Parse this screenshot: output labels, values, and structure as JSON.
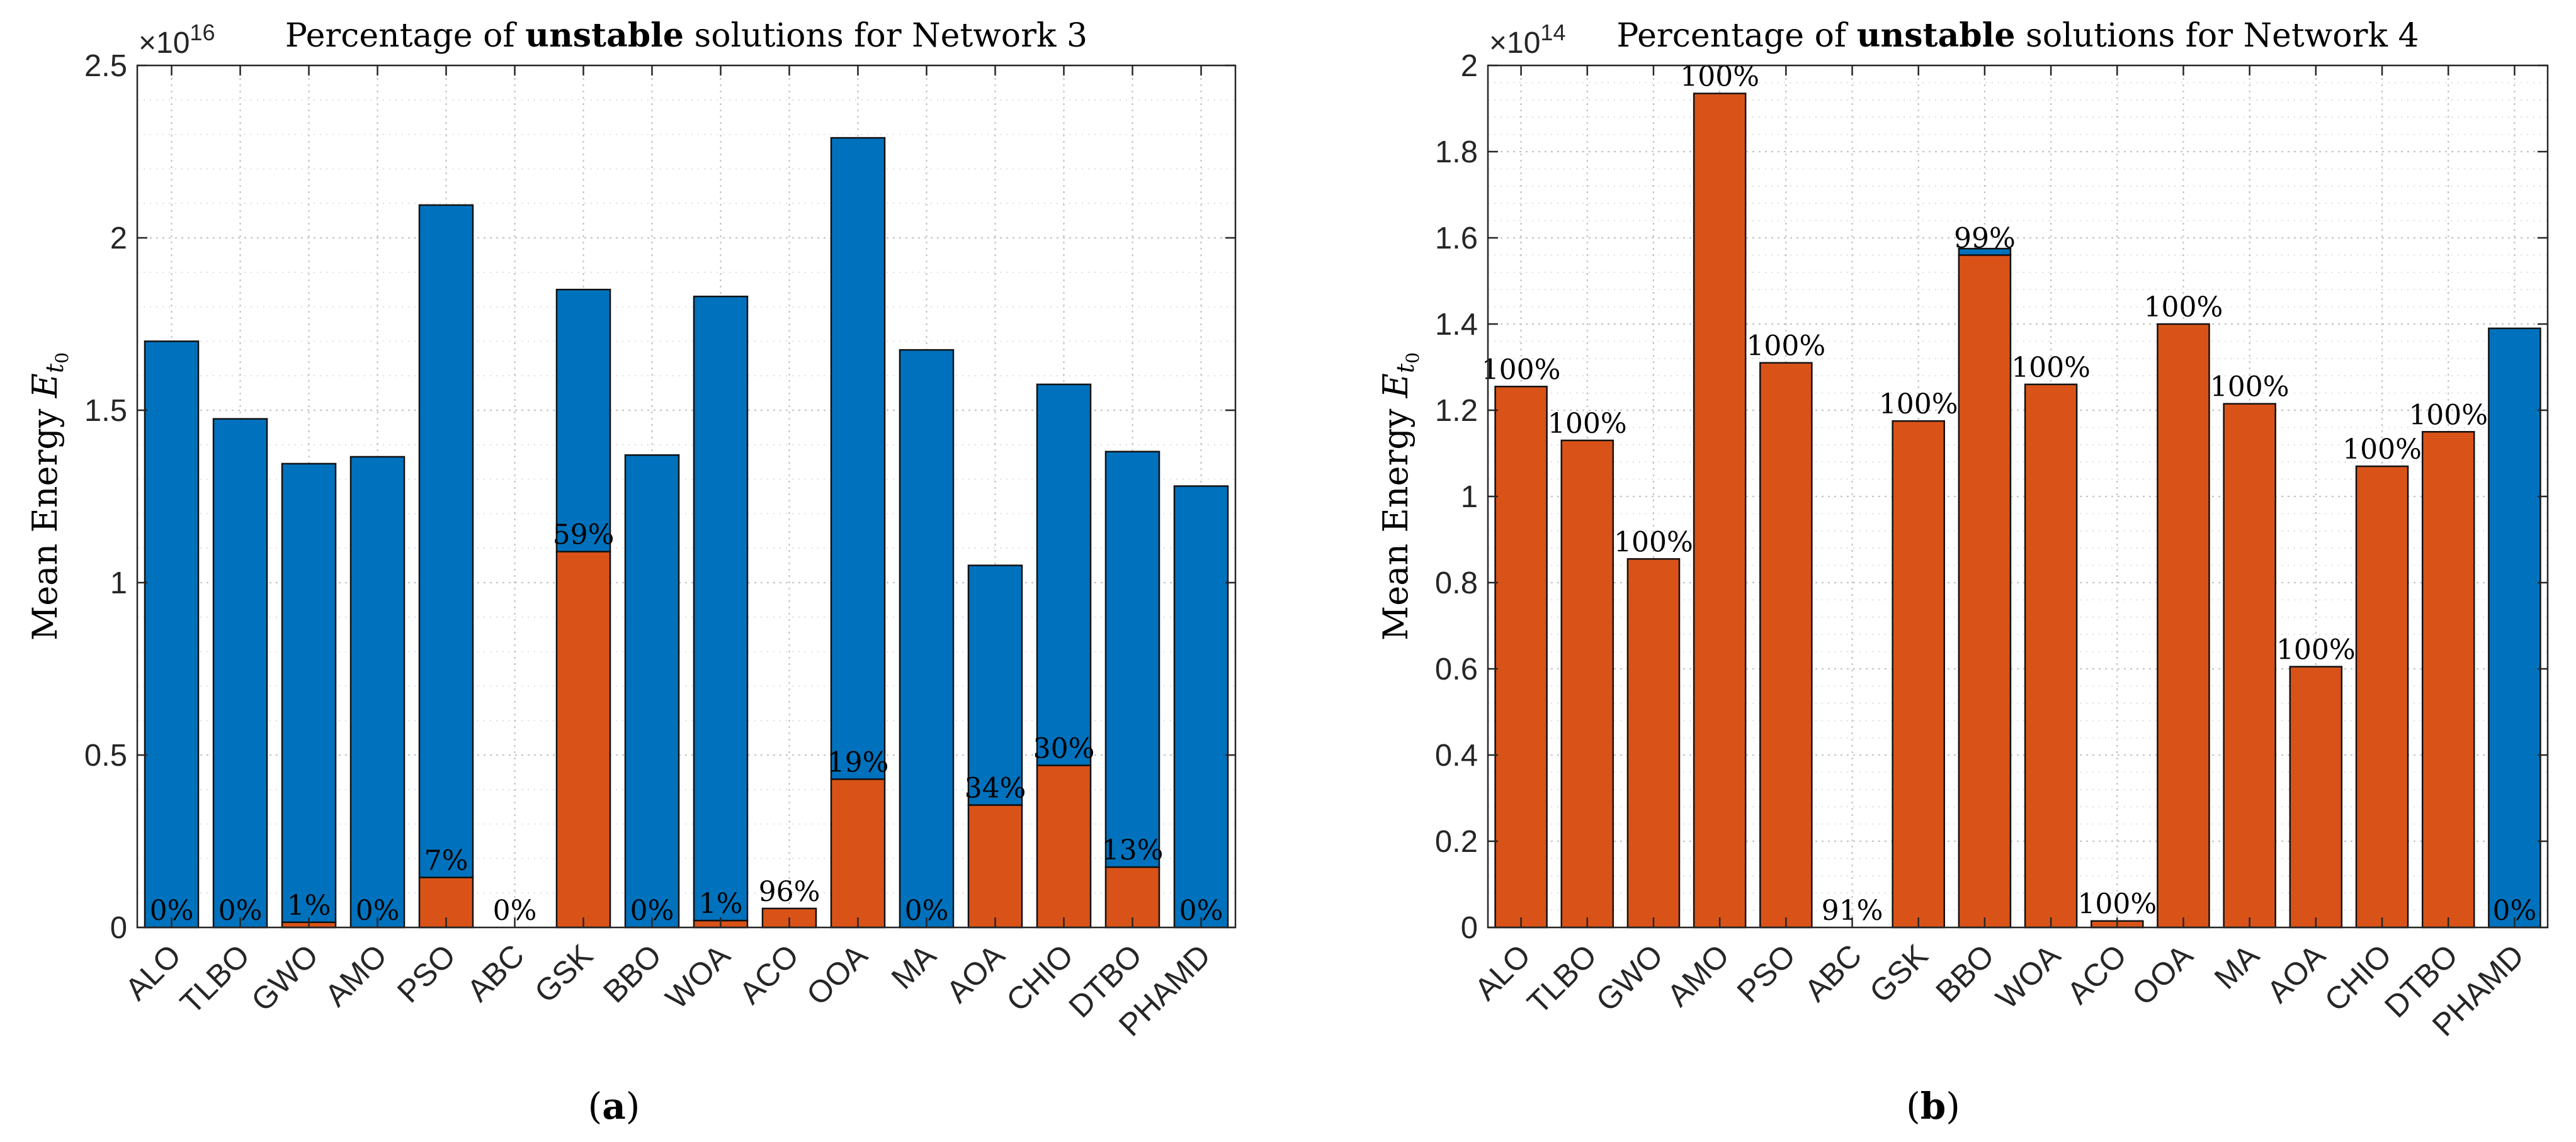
{
  "chart_data": [
    {
      "type": "bar",
      "stacked": true,
      "title_prefix": "Percentage of ",
      "title_bold": "unstable",
      "title_suffix": " solutions for Network 3",
      "ylabel_main": "Mean Energy ",
      "ylabel_symbol": "E",
      "ylabel_sub": "t",
      "ylabel_subsub": "0",
      "exponent_base": "×10",
      "exponent": "16",
      "panel_label": "(a)",
      "ylim": [
        0,
        2.5
      ],
      "yticks": [
        0,
        0.5,
        1,
        1.5,
        2,
        2.5
      ],
      "ytick_labels": [
        "0",
        "0.5",
        "1",
        "1.5",
        "2",
        "2.5"
      ],
      "grid": true,
      "colors": {
        "stable": "#0072BD",
        "unstable": "#D95319"
      },
      "categories": [
        "ALO",
        "TLBO",
        "GWO",
        "AMO",
        "PSO",
        "ABC",
        "GSK",
        "BBO",
        "WOA",
        "ACO",
        "OOA",
        "MA",
        "AOA",
        "CHIO",
        "DTBO",
        "PHAMD"
      ],
      "series": [
        {
          "values": [
            0,
            0,
            0.015,
            0,
            0.145,
            0,
            1.09,
            0,
            0.02,
            0.055,
            0.43,
            0,
            0.355,
            0.47,
            0.175,
            0
          ]
        },
        {
          "values": [
            1.7,
            1.475,
            1.33,
            1.365,
            1.95,
            0,
            0.76,
            1.37,
            1.81,
            0,
            1.86,
            1.675,
            0.695,
            1.105,
            1.205,
            1.28
          ]
        }
      ],
      "data_labels": [
        "0%",
        "0%",
        "1%",
        "0%",
        "7%",
        "0%",
        "59%",
        "0%",
        "1%",
        "96%",
        "19%",
        "0%",
        "34%",
        "30%",
        "13%",
        "0%"
      ]
    },
    {
      "type": "bar",
      "stacked": true,
      "title_prefix": "Percentage of ",
      "title_bold": "unstable",
      "title_suffix": " solutions for Network 4",
      "ylabel_main": "Mean Energy ",
      "ylabel_symbol": "E",
      "ylabel_sub": "t",
      "ylabel_subsub": "0",
      "exponent_base": "×10",
      "exponent": "14",
      "panel_label": "(b)",
      "ylim": [
        0,
        2
      ],
      "yticks": [
        0,
        0.2,
        0.4,
        0.6,
        0.8,
        1,
        1.2,
        1.4,
        1.6,
        1.8,
        2
      ],
      "ytick_labels": [
        "0",
        "0.2",
        "0.4",
        "0.6",
        "0.8",
        "1",
        "1.2",
        "1.4",
        "1.6",
        "1.8",
        "2"
      ],
      "grid": true,
      "colors": {
        "stable": "#0072BD",
        "unstable": "#D95319"
      },
      "categories": [
        "ALO",
        "TLBO",
        "GWO",
        "AMO",
        "PSO",
        "ABC",
        "GSK",
        "BBO",
        "WOA",
        "ACO",
        "OOA",
        "MA",
        "AOA",
        "CHIO",
        "DTBO",
        "PHAMD"
      ],
      "series": [
        {
          "values": [
            1.255,
            1.13,
            0.855,
            1.935,
            1.31,
            0,
            1.175,
            1.56,
            1.26,
            0.015,
            1.4,
            1.215,
            0.605,
            1.07,
            1.15,
            0
          ]
        },
        {
          "values": [
            0,
            0,
            0,
            0,
            0,
            0,
            0,
            0.015,
            0,
            0,
            0,
            0,
            0,
            0,
            0,
            1.39
          ]
        }
      ],
      "data_labels": [
        "100%",
        "100%",
        "100%",
        "100%",
        "100%",
        "91%",
        "100%",
        "99%",
        "100%",
        "100%",
        "100%",
        "100%",
        "100%",
        "100%",
        "100%",
        "0%"
      ]
    }
  ]
}
